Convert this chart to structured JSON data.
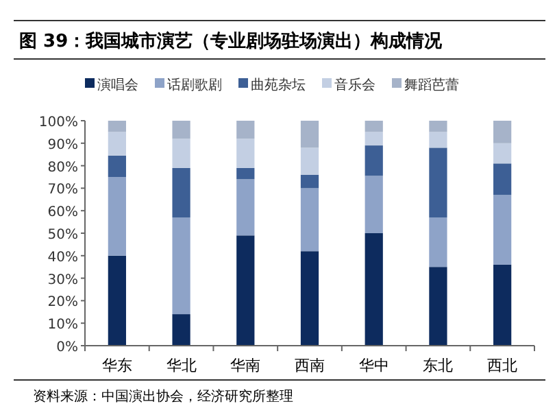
{
  "chart_data": {
    "type": "bar",
    "stacked": true,
    "title": "图 39：我国城市演艺（专业剧场驻场演出）构成情况",
    "categories": [
      "华东",
      "华北",
      "华南",
      "西南",
      "华中",
      "东北",
      "西北"
    ],
    "series": [
      {
        "name": "演唱会",
        "color": "#0d2b5e",
        "values": [
          40,
          14,
          49,
          42,
          50,
          35,
          36
        ]
      },
      {
        "name": "话剧歌剧",
        "color": "#8ea3c8",
        "values": [
          35,
          43,
          25,
          28,
          25.5,
          22,
          31
        ]
      },
      {
        "name": "曲苑杂坛",
        "color": "#3d5f95",
        "values": [
          9.5,
          22,
          5,
          6,
          13.5,
          31,
          14
        ]
      },
      {
        "name": "音乐会",
        "color": "#c3cfe3",
        "values": [
          10.5,
          13,
          13,
          12,
          6,
          7,
          9
        ]
      },
      {
        "name": "舞蹈芭蕾",
        "color": "#a6b3c9",
        "values": [
          5,
          8,
          8,
          12,
          5,
          5,
          10
        ]
      }
    ],
    "ylim": [
      0,
      100
    ],
    "yticks": [
      {
        "value": 0,
        "label": "0%"
      },
      {
        "value": 10,
        "label": "10%"
      },
      {
        "value": 20,
        "label": "20%"
      },
      {
        "value": 30,
        "label": "30%"
      },
      {
        "value": 40,
        "label": "40%"
      },
      {
        "value": 50,
        "label": "50%"
      },
      {
        "value": 60,
        "label": "60%"
      },
      {
        "value": 70,
        "label": "70%"
      },
      {
        "value": 80,
        "label": "80%"
      },
      {
        "value": 90,
        "label": "90%"
      },
      {
        "value": 100,
        "label": "100%"
      }
    ],
    "grid": false,
    "legend": "top",
    "annotations": [
      "资料来源：中国演出协会，经济研究所整理"
    ]
  }
}
